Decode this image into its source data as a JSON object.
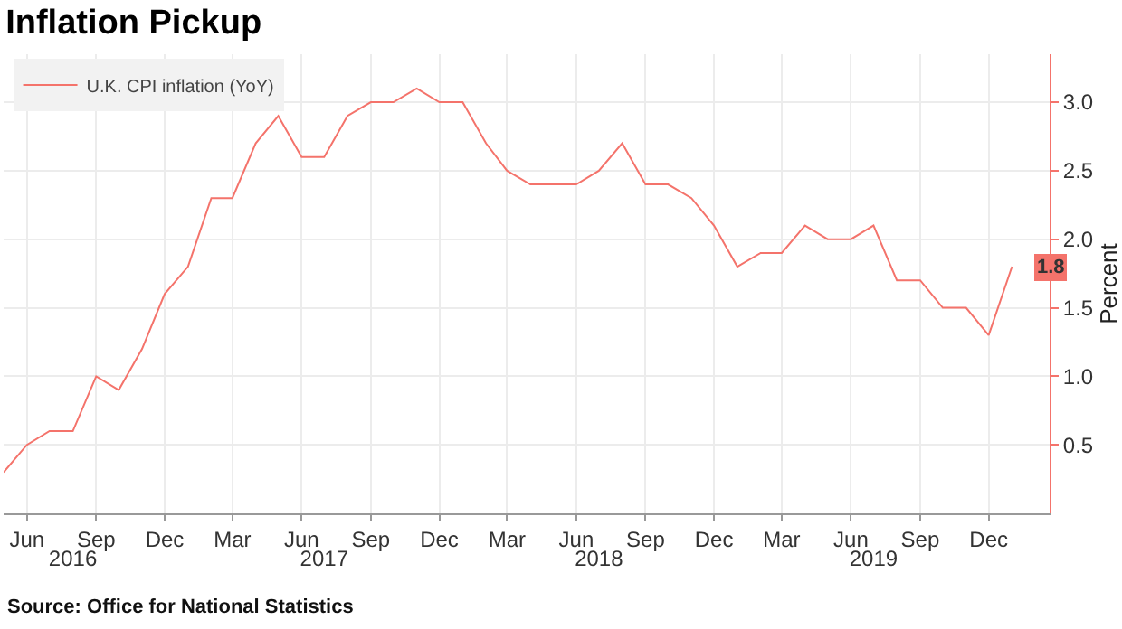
{
  "chart_data": {
    "type": "line",
    "title": "Inflation Pickup",
    "ylabel": "Percent",
    "annotations": [
      "Source: Office for National Statistics"
    ],
    "x": [
      "2016-05",
      "2016-06",
      "2016-07",
      "2016-08",
      "2016-09",
      "2016-10",
      "2016-11",
      "2016-12",
      "2017-01",
      "2017-02",
      "2017-03",
      "2017-04",
      "2017-05",
      "2017-06",
      "2017-07",
      "2017-08",
      "2017-09",
      "2017-10",
      "2017-11",
      "2017-12",
      "2018-01",
      "2018-02",
      "2018-03",
      "2018-04",
      "2018-05",
      "2018-06",
      "2018-07",
      "2018-08",
      "2018-09",
      "2018-10",
      "2018-11",
      "2018-12",
      "2019-01",
      "2019-02",
      "2019-03",
      "2019-04",
      "2019-05",
      "2019-06",
      "2019-07",
      "2019-08",
      "2019-09",
      "2019-10",
      "2019-11",
      "2019-12",
      "2020-01"
    ],
    "series": [
      {
        "name": "U.K. CPI inflation (YoY)",
        "color": "#f4736b",
        "values": [
          0.3,
          0.5,
          0.6,
          0.6,
          1.0,
          0.9,
          1.2,
          1.6,
          1.8,
          2.3,
          2.3,
          2.7,
          2.9,
          2.6,
          2.6,
          2.9,
          3.0,
          3.0,
          3.1,
          3.0,
          3.0,
          2.7,
          2.5,
          2.4,
          2.4,
          2.4,
          2.5,
          2.7,
          2.4,
          2.4,
          2.3,
          2.1,
          1.8,
          1.9,
          1.9,
          2.1,
          2.0,
          2.0,
          2.1,
          1.7,
          1.7,
          1.5,
          1.5,
          1.3,
          1.8
        ],
        "value_labels": [
          null,
          null,
          null,
          null,
          null,
          null,
          null,
          null,
          null,
          null,
          null,
          null,
          null,
          null,
          null,
          null,
          null,
          null,
          null,
          null,
          null,
          null,
          null,
          null,
          null,
          null,
          null,
          null,
          null,
          null,
          null,
          null,
          null,
          null,
          null,
          null,
          null,
          null,
          null,
          null,
          null,
          null,
          null,
          null,
          "1.8"
        ]
      }
    ],
    "xlim": [
      "2016-05-01",
      "2020-02-20"
    ],
    "xticks": [
      {
        "value": "2016-06-01",
        "label": "Jun"
      },
      {
        "value": "2016-09-01",
        "label": "Sep"
      },
      {
        "value": "2016-12-01",
        "label": "Dec"
      },
      {
        "value": "2017-03-01",
        "label": "Mar"
      },
      {
        "value": "2017-06-01",
        "label": "Jun"
      },
      {
        "value": "2017-09-01",
        "label": "Sep"
      },
      {
        "value": "2017-12-01",
        "label": "Dec"
      },
      {
        "value": "2018-03-01",
        "label": "Mar"
      },
      {
        "value": "2018-06-01",
        "label": "Jun"
      },
      {
        "value": "2018-09-01",
        "label": "Sep"
      },
      {
        "value": "2018-12-01",
        "label": "Dec"
      },
      {
        "value": "2019-03-01",
        "label": "Mar"
      },
      {
        "value": "2019-06-01",
        "label": "Jun"
      },
      {
        "value": "2019-09-01",
        "label": "Sep"
      },
      {
        "value": "2019-12-01",
        "label": "Dec"
      }
    ],
    "x2lim": [
      "2016-05-01",
      "2020-02-20"
    ],
    "x2ticks": [
      {
        "value": "2016-08-01",
        "label": "2016"
      },
      {
        "value": "2017-07-01",
        "label": "2017"
      },
      {
        "value": "2018-07-01",
        "label": "2018"
      },
      {
        "value": "2019-07-01",
        "label": "2019"
      }
    ],
    "ylim": [
      0,
      3.35
    ],
    "yticks": [
      0.5,
      {
        "value": 1,
        "label": "1.0"
      },
      1.5,
      {
        "value": 2,
        "label": "2.0"
      },
      2.5,
      {
        "value": 3,
        "label": "3.0"
      }
    ],
    "grid": true,
    "legend": "top left",
    "marker": "none",
    "line_style": "solid"
  }
}
